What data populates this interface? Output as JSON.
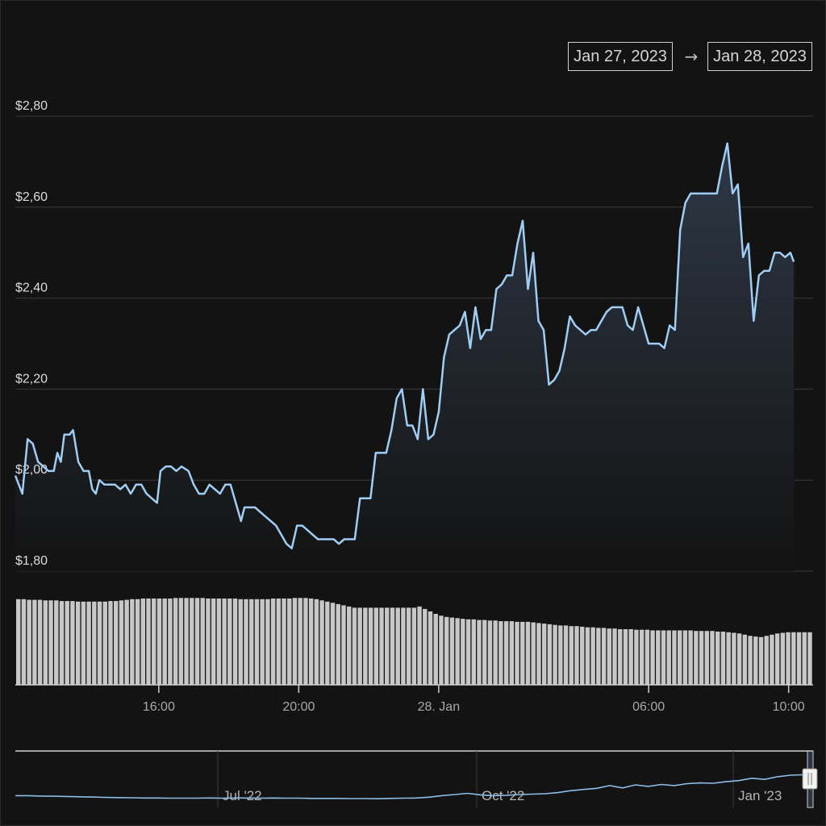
{
  "range_selector": {
    "from": "Jan 27, 2023",
    "arrow": "→",
    "to": "Jan 28, 2023"
  },
  "colors": {
    "background": "#131313",
    "line": "#9fcdf4",
    "area_top": "#2e3846",
    "grid": "#3a3a3a",
    "volume": "#c8c8c8",
    "navigator_line": "#8cbde6"
  },
  "chart_data": [
    {
      "type": "line",
      "title": "",
      "xlabel": "",
      "ylabel": "",
      "y_tick_labels": [
        "$1,80",
        "$2,00",
        "$2,20",
        "$2,40",
        "$2,60",
        "$2,80"
      ],
      "y_ticks": [
        1.8,
        2.0,
        2.2,
        2.4,
        2.6,
        2.8
      ],
      "ylim": [
        1.8,
        2.8
      ],
      "x_tick_labels": [
        "16:00",
        "20:00",
        "28. Jan",
        "06:00",
        "10:00"
      ],
      "x_ticks": [
        16,
        20,
        24,
        30,
        34
      ],
      "xlim": [
        11.9,
        34.7
      ],
      "x_unit": "hours since Jan 27, 2023 00:00",
      "grid": true,
      "series": [
        {
          "name": "",
          "points": [
            [
              11.9,
              2.01
            ],
            [
              12.1,
              1.97
            ],
            [
              12.25,
              2.09
            ],
            [
              12.4,
              2.08
            ],
            [
              12.55,
              2.04
            ],
            [
              12.7,
              2.03
            ],
            [
              12.85,
              2.02
            ],
            [
              13.0,
              2.02
            ],
            [
              13.1,
              2.06
            ],
            [
              13.2,
              2.04
            ],
            [
              13.3,
              2.1
            ],
            [
              13.45,
              2.1
            ],
            [
              13.55,
              2.11
            ],
            [
              13.7,
              2.04
            ],
            [
              13.85,
              2.02
            ],
            [
              14.0,
              2.02
            ],
            [
              14.1,
              1.98
            ],
            [
              14.2,
              1.97
            ],
            [
              14.3,
              2.0
            ],
            [
              14.45,
              1.99
            ],
            [
              14.6,
              1.99
            ],
            [
              14.75,
              1.99
            ],
            [
              14.9,
              1.98
            ],
            [
              15.05,
              1.99
            ],
            [
              15.2,
              1.97
            ],
            [
              15.35,
              1.99
            ],
            [
              15.5,
              1.99
            ],
            [
              15.65,
              1.97
            ],
            [
              15.8,
              1.96
            ],
            [
              15.95,
              1.95
            ],
            [
              16.05,
              2.02
            ],
            [
              16.2,
              2.03
            ],
            [
              16.35,
              2.03
            ],
            [
              16.5,
              2.02
            ],
            [
              16.65,
              2.03
            ],
            [
              16.85,
              2.02
            ],
            [
              17.0,
              1.99
            ],
            [
              17.15,
              1.97
            ],
            [
              17.3,
              1.97
            ],
            [
              17.45,
              1.99
            ],
            [
              17.6,
              1.98
            ],
            [
              17.75,
              1.97
            ],
            [
              17.9,
              1.99
            ],
            [
              18.05,
              1.99
            ],
            [
              18.2,
              1.95
            ],
            [
              18.35,
              1.91
            ],
            [
              18.45,
              1.94
            ],
            [
              18.6,
              1.94
            ],
            [
              18.75,
              1.94
            ],
            [
              18.9,
              1.93
            ],
            [
              19.05,
              1.92
            ],
            [
              19.2,
              1.91
            ],
            [
              19.35,
              1.9
            ],
            [
              19.5,
              1.88
            ],
            [
              19.65,
              1.86
            ],
            [
              19.8,
              1.85
            ],
            [
              19.95,
              1.9
            ],
            [
              20.1,
              1.9
            ],
            [
              20.25,
              1.89
            ],
            [
              20.4,
              1.88
            ],
            [
              20.55,
              1.87
            ],
            [
              20.7,
              1.87
            ],
            [
              20.85,
              1.87
            ],
            [
              21.0,
              1.87
            ],
            [
              21.15,
              1.86
            ],
            [
              21.3,
              1.87
            ],
            [
              21.45,
              1.87
            ],
            [
              21.6,
              1.87
            ],
            [
              21.75,
              1.96
            ],
            [
              21.9,
              1.96
            ],
            [
              22.05,
              1.96
            ],
            [
              22.2,
              2.06
            ],
            [
              22.35,
              2.06
            ],
            [
              22.5,
              2.06
            ],
            [
              22.65,
              2.11
            ],
            [
              22.8,
              2.18
            ],
            [
              22.95,
              2.2
            ],
            [
              23.1,
              2.12
            ],
            [
              23.25,
              2.12
            ],
            [
              23.4,
              2.09
            ],
            [
              23.55,
              2.2
            ],
            [
              23.7,
              2.09
            ],
            [
              23.85,
              2.1
            ],
            [
              24.0,
              2.15
            ],
            [
              24.15,
              2.27
            ],
            [
              24.3,
              2.32
            ],
            [
              24.45,
              2.33
            ],
            [
              24.6,
              2.34
            ],
            [
              24.75,
              2.37
            ],
            [
              24.9,
              2.29
            ],
            [
              25.05,
              2.38
            ],
            [
              25.2,
              2.31
            ],
            [
              25.35,
              2.33
            ],
            [
              25.5,
              2.33
            ],
            [
              25.65,
              2.42
            ],
            [
              25.8,
              2.43
            ],
            [
              25.95,
              2.45
            ],
            [
              26.1,
              2.45
            ],
            [
              26.25,
              2.52
            ],
            [
              26.4,
              2.57
            ],
            [
              26.55,
              2.42
            ],
            [
              26.7,
              2.5
            ],
            [
              26.85,
              2.35
            ],
            [
              27.0,
              2.33
            ],
            [
              27.15,
              2.21
            ],
            [
              27.3,
              2.22
            ],
            [
              27.45,
              2.24
            ],
            [
              27.6,
              2.29
            ],
            [
              27.75,
              2.36
            ],
            [
              27.9,
              2.34
            ],
            [
              28.05,
              2.33
            ],
            [
              28.2,
              2.32
            ],
            [
              28.35,
              2.33
            ],
            [
              28.5,
              2.33
            ],
            [
              28.65,
              2.35
            ],
            [
              28.8,
              2.37
            ],
            [
              28.95,
              2.38
            ],
            [
              29.1,
              2.38
            ],
            [
              29.25,
              2.38
            ],
            [
              29.4,
              2.34
            ],
            [
              29.55,
              2.33
            ],
            [
              29.7,
              2.38
            ],
            [
              29.85,
              2.34
            ],
            [
              30.0,
              2.3
            ],
            [
              30.15,
              2.3
            ],
            [
              30.3,
              2.3
            ],
            [
              30.45,
              2.29
            ],
            [
              30.6,
              2.34
            ],
            [
              30.75,
              2.33
            ],
            [
              30.9,
              2.55
            ],
            [
              31.05,
              2.61
            ],
            [
              31.2,
              2.63
            ],
            [
              31.35,
              2.63
            ],
            [
              31.5,
              2.63
            ],
            [
              31.65,
              2.63
            ],
            [
              31.8,
              2.63
            ],
            [
              31.95,
              2.63
            ],
            [
              32.1,
              2.69
            ],
            [
              32.25,
              2.74
            ],
            [
              32.4,
              2.63
            ],
            [
              32.55,
              2.65
            ],
            [
              32.7,
              2.49
            ],
            [
              32.85,
              2.52
            ],
            [
              33.0,
              2.35
            ],
            [
              33.15,
              2.45
            ],
            [
              33.3,
              2.46
            ],
            [
              33.45,
              2.46
            ],
            [
              33.6,
              2.5
            ],
            [
              33.75,
              2.5
            ],
            [
              33.9,
              2.49
            ],
            [
              34.05,
              2.5
            ],
            [
              34.15,
              2.48
            ]
          ]
        }
      ],
      "volume": {
        "series_name": "",
        "values": [
          140,
          140,
          139,
          139,
          139,
          138,
          138,
          138,
          137,
          137,
          137,
          136,
          136,
          136,
          136,
          136,
          136,
          137,
          137,
          138,
          139,
          140,
          140,
          141,
          141,
          141,
          141,
          141,
          141,
          142,
          142,
          142,
          142,
          142,
          142,
          141,
          141,
          141,
          141,
          141,
          141,
          140,
          140,
          140,
          140,
          140,
          140,
          141,
          141,
          141,
          141,
          142,
          142,
          142,
          141,
          140,
          138,
          136,
          134,
          132,
          130,
          128,
          126,
          126,
          126,
          126,
          126,
          126,
          126,
          126,
          126,
          126,
          126,
          126,
          128,
          124,
          120,
          116,
          113,
          111,
          110,
          109,
          108,
          107,
          107,
          106,
          106,
          105,
          105,
          104,
          104,
          104,
          103,
          103,
          103,
          102,
          101,
          100,
          99,
          98,
          97,
          97,
          96,
          96,
          95,
          94,
          94,
          93,
          93,
          92,
          92,
          91,
          91,
          91,
          90,
          90,
          90,
          89,
          89,
          89,
          89,
          89,
          89,
          89,
          89,
          88,
          88,
          88,
          88,
          87,
          87,
          86,
          85,
          84,
          82,
          80,
          79,
          78,
          80,
          82,
          84,
          85,
          86,
          86,
          86,
          86,
          86
        ]
      }
    },
    {
      "type": "area",
      "title": "",
      "x_tick_labels": [
        "Jul '22",
        "Oct '22",
        "Jan '23"
      ],
      "series": [
        {
          "name": "",
          "values": [
            1.4,
            1.4,
            1.38,
            1.37,
            1.36,
            1.34,
            1.33,
            1.31,
            1.3,
            1.29,
            1.28,
            1.28,
            1.27,
            1.27,
            1.27,
            1.28,
            1.27,
            1.28,
            1.28,
            1.27,
            1.28,
            1.27,
            1.27,
            1.26,
            1.26,
            1.26,
            1.25,
            1.25,
            1.24,
            1.26,
            1.27,
            1.28,
            1.32,
            1.4,
            1.46,
            1.52,
            1.44,
            1.4,
            1.42,
            1.46,
            1.48,
            1.5,
            1.56,
            1.66,
            1.72,
            1.78,
            1.92,
            1.8,
            1.96,
            1.88,
            1.98,
            1.92,
            2.02,
            2.06,
            2.04,
            2.12,
            2.18,
            2.3,
            2.24,
            2.38,
            2.46,
            2.48
          ]
        }
      ]
    }
  ]
}
